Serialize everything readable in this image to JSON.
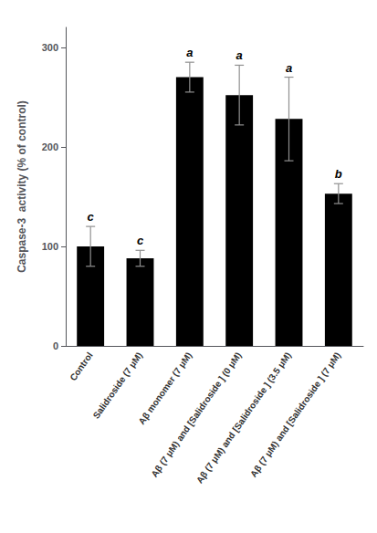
{
  "chart_data": {
    "type": "bar",
    "categories": [
      "Control",
      "Salidroside (7 μM)",
      "Aβ monomer (7 μM)",
      "Aβ (7 μM) and [Salidroside ] (0 μM)",
      "Aβ (7 μM) and [Salidroside ] (3.5 μM)",
      "Aβ (7 μM) and [Salidroside ] (7 μM)"
    ],
    "values": [
      100,
      88,
      270,
      252,
      228,
      153
    ],
    "errors": [
      20,
      8,
      15,
      30,
      42,
      10
    ],
    "significance": [
      "c",
      "c",
      "a",
      "a",
      "a",
      "b"
    ],
    "ylabel": "Caspase-3  activity (% of control)",
    "ylim": [
      0,
      320
    ],
    "yticks": [
      0,
      100,
      200,
      300
    ],
    "color": "#000000",
    "error_color": "#909090",
    "grid": false
  }
}
